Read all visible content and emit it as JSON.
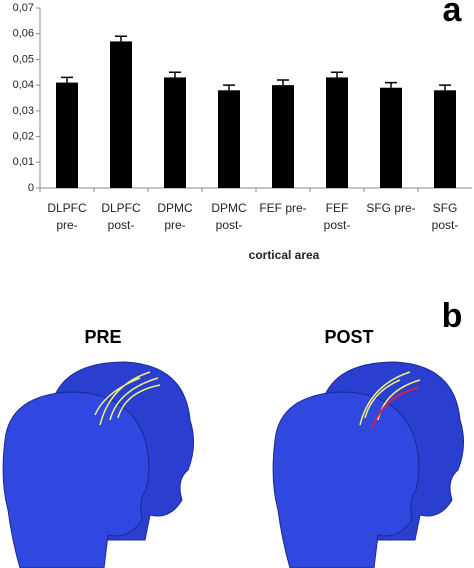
{
  "chart_data": {
    "type": "bar",
    "panel_label": "a",
    "x_label": "cortical area",
    "categories": [
      "DLPFC pre-",
      "DLPFC post-",
      "DPMC pre-",
      "DPMC post-",
      "FEF pre-",
      "FEF post-",
      "SFG pre-",
      "SFG post-"
    ],
    "values": [
      0.041,
      0.057,
      0.043,
      0.038,
      0.04,
      0.043,
      0.039,
      0.038
    ],
    "errors": [
      0.002,
      0.002,
      0.002,
      0.002,
      0.002,
      0.002,
      0.002,
      0.002
    ],
    "color": "#000000",
    "ylim": [
      0,
      0.07
    ],
    "yticks": [
      0,
      {
        "value": 0.01,
        "label": "0,01"
      },
      {
        "value": 0.02,
        "label": "0,02"
      },
      {
        "value": 0.03,
        "label": "0,03"
      },
      {
        "value": 0.04,
        "label": "0,04"
      },
      {
        "value": 0.05,
        "label": "0,05"
      },
      {
        "value": 0.06,
        "label": "0,06"
      },
      {
        "value": 0.07,
        "label": "0,07"
      }
    ]
  },
  "figure_b": {
    "panel_label": "b",
    "left_title": "PRE",
    "right_title": "POST"
  }
}
